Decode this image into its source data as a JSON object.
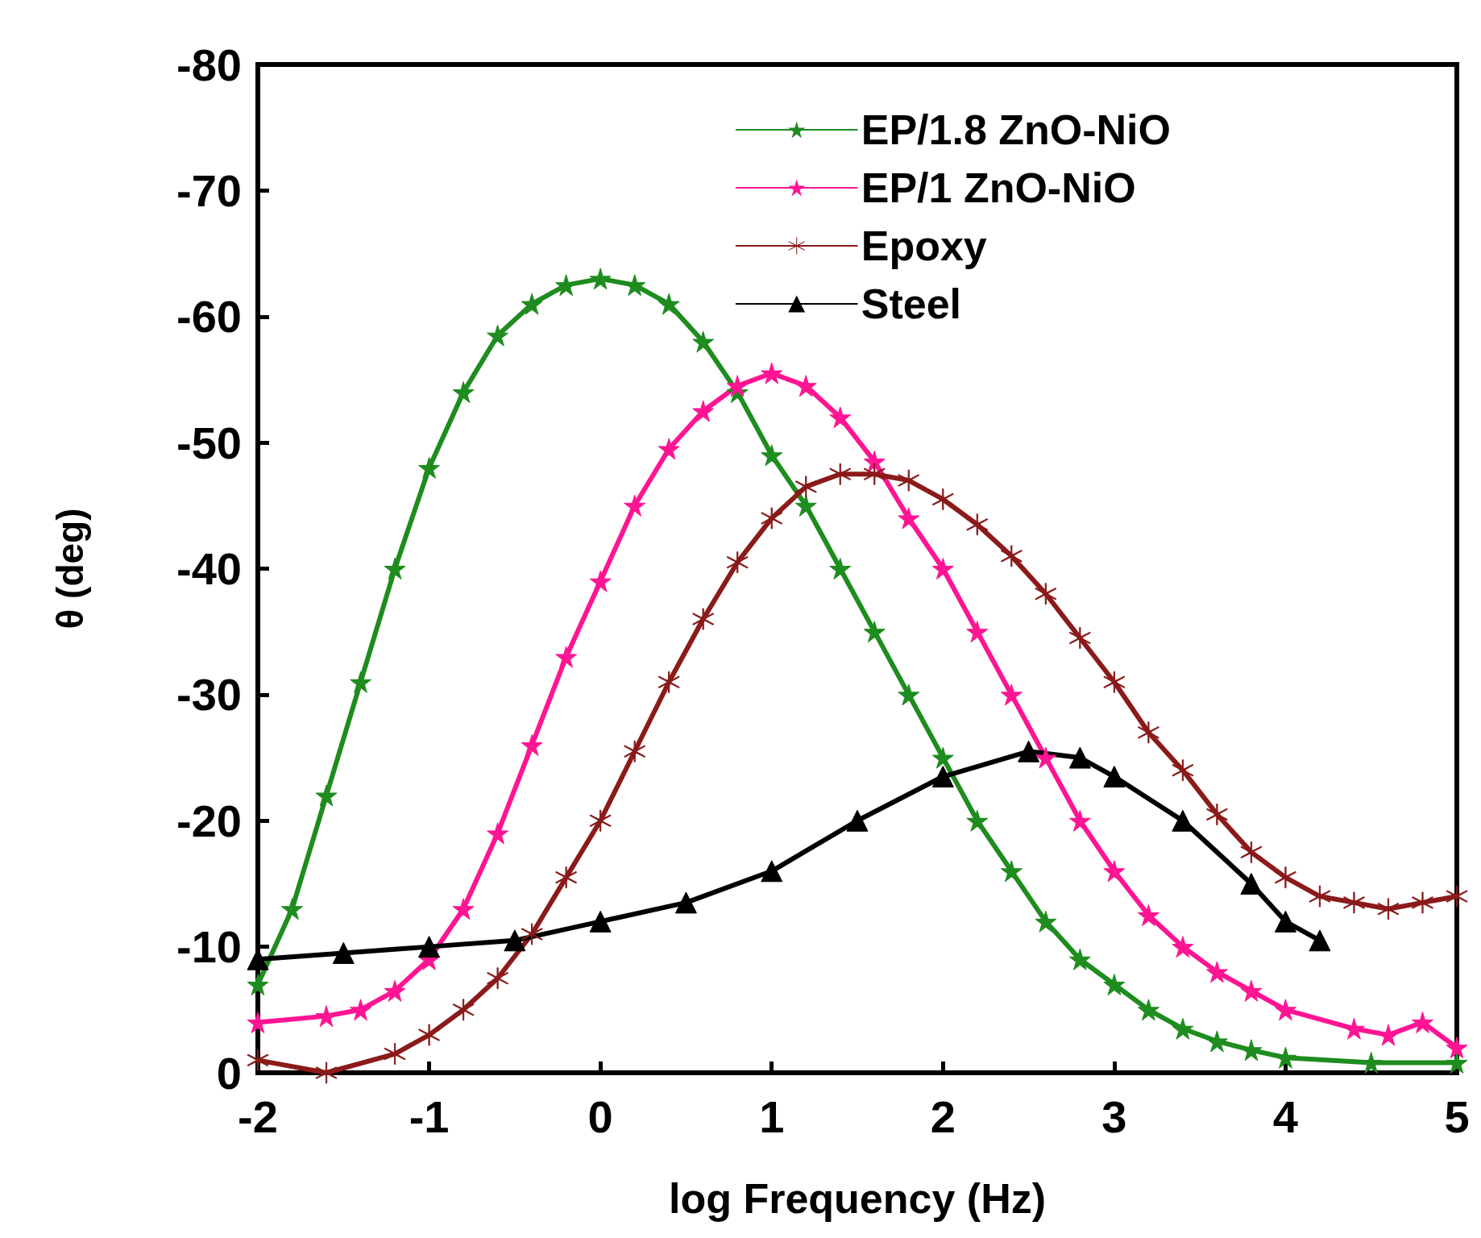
{
  "chart_data": {
    "type": "line",
    "xlabel": "log Frequency (Hz)",
    "ylabel": "θ (deg)",
    "xlim": [
      -2,
      5
    ],
    "xticks": [
      -2,
      -1,
      0,
      1,
      2,
      3,
      4,
      5
    ],
    "ylim": [
      0,
      -80
    ],
    "yticks": [
      0,
      -10,
      -20,
      -30,
      -40,
      -50,
      -60,
      -70,
      -80
    ],
    "grid": false,
    "legend": "top right",
    "line_style": "solid",
    "series": [
      {
        "name": "EP/1.8 ZnO-NiO",
        "color": "#1e8c1e",
        "marker": "star",
        "x": [
          -2,
          -1.8,
          -1.6,
          -1.4,
          -1.2,
          -1,
          -0.8,
          -0.6,
          -0.4,
          -0.2,
          0,
          0.2,
          0.4,
          0.6,
          0.8,
          1,
          1.2,
          1.4,
          1.6,
          1.8,
          2,
          2.2,
          2.4,
          2.6,
          2.8,
          3,
          3.2,
          3.4,
          3.6,
          3.8,
          4,
          4.5,
          5
        ],
        "values": [
          -7,
          -13,
          -22,
          -31,
          -40,
          -48,
          -54,
          -58.5,
          -61,
          -62.5,
          -63,
          -62.5,
          -61,
          -58,
          -54,
          -49,
          -45,
          -40,
          -35,
          -30,
          -25,
          -20,
          -16,
          -12,
          -9,
          -7,
          -5,
          -3.5,
          -2.5,
          -1.8,
          -1.2,
          -0.8,
          -0.8
        ]
      },
      {
        "name": "EP/1 ZnO-NiO",
        "color": "#ff1493",
        "marker": "star",
        "x": [
          -2,
          -1.6,
          -1.4,
          -1.2,
          -1,
          -0.8,
          -0.6,
          -0.4,
          -0.2,
          0,
          0.2,
          0.4,
          0.6,
          0.8,
          1,
          1.2,
          1.4,
          1.6,
          1.8,
          2,
          2.2,
          2.4,
          2.6,
          2.8,
          3,
          3.2,
          3.4,
          3.6,
          3.8,
          4,
          4.4,
          4.6,
          4.8,
          5
        ],
        "values": [
          -4,
          -4.5,
          -5,
          -6.5,
          -9,
          -13,
          -19,
          -26,
          -33,
          -39,
          -45,
          -49.5,
          -52.5,
          -54.5,
          -55.5,
          -54.5,
          -52,
          -48.5,
          -44,
          -40,
          -35,
          -30,
          -25,
          -20,
          -16,
          -12.5,
          -10,
          -8,
          -6.5,
          -5,
          -3.5,
          -3,
          -4,
          -2
        ]
      },
      {
        "name": "Epoxy",
        "color": "#8b1a1a",
        "marker": "cross",
        "x": [
          -2,
          -1.6,
          -1.2,
          -1,
          -0.8,
          -0.6,
          -0.4,
          -0.2,
          0,
          0.2,
          0.4,
          0.6,
          0.8,
          1,
          1.2,
          1.4,
          1.6,
          1.8,
          2,
          2.2,
          2.4,
          2.6,
          2.8,
          3,
          3.2,
          3.4,
          3.6,
          3.8,
          4,
          4.2,
          4.4,
          4.6,
          4.8,
          5
        ],
        "values": [
          -1,
          0,
          -1.5,
          -3,
          -5,
          -7.5,
          -11,
          -15.5,
          -20,
          -25.5,
          -31,
          -36,
          -40.5,
          -44,
          -46.5,
          -47.5,
          -47.5,
          -47,
          -45.5,
          -43.5,
          -41,
          -38,
          -34.5,
          -31,
          -27,
          -24,
          -20.5,
          -17.5,
          -15.5,
          -14,
          -13.5,
          -13,
          -13.5,
          -14
        ]
      },
      {
        "name": "Steel",
        "color": "#000000",
        "marker": "triangle",
        "x": [
          -2,
          -1.5,
          -1,
          -0.5,
          0,
          0.5,
          1,
          1.5,
          2,
          2.5,
          2.8,
          3,
          3.4,
          3.8,
          4,
          4.2
        ],
        "values": [
          -9,
          -9.5,
          -10,
          -10.5,
          -12,
          -13.5,
          -16,
          -20,
          -23.5,
          -25.5,
          -25,
          -23.5,
          -20,
          -15,
          -12,
          -10.5
        ]
      }
    ]
  }
}
